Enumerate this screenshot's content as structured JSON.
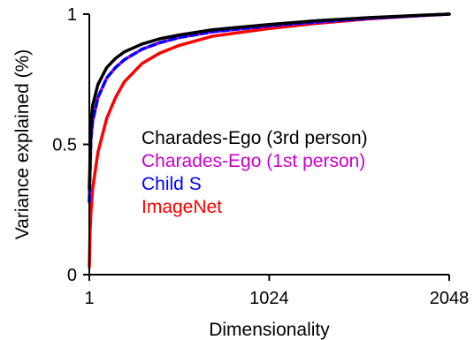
{
  "chart_data": {
    "type": "line",
    "title": "",
    "xlabel": "Dimensionality",
    "ylabel": "Variance explained (%)",
    "xlim": [
      1,
      2048
    ],
    "ylim": [
      0,
      1
    ],
    "x_ticks": [
      1,
      1024,
      2048
    ],
    "x_tick_labels": [
      "1",
      "1024",
      "2048"
    ],
    "y_ticks": [
      0,
      0.5,
      1
    ],
    "y_tick_labels": [
      "0",
      "0.5",
      "1"
    ],
    "grid": false,
    "legend_placement": "center",
    "series": [
      {
        "name": "Charades-Ego (3rd person)",
        "color": "#000000",
        "dashed": false,
        "x": [
          1,
          10,
          20,
          50,
          100,
          150,
          200,
          300,
          400,
          512,
          700,
          1024,
          1300,
          1600,
          1900,
          2048
        ],
        "y": [
          0.33,
          0.58,
          0.65,
          0.73,
          0.795,
          0.83,
          0.855,
          0.885,
          0.905,
          0.92,
          0.94,
          0.96,
          0.975,
          0.987,
          0.996,
          1.0
        ]
      },
      {
        "name": "Charades-Ego (1st person)",
        "color": "#cc00cc",
        "dashed": false,
        "x": [
          1,
          10,
          20,
          50,
          100,
          150,
          200,
          300,
          400,
          512,
          700,
          1024,
          1300,
          1600,
          1900,
          2048
        ],
        "y": [
          0.28,
          0.52,
          0.59,
          0.68,
          0.755,
          0.795,
          0.825,
          0.865,
          0.89,
          0.91,
          0.932,
          0.955,
          0.97,
          0.984,
          0.995,
          1.0
        ]
      },
      {
        "name": "Child S",
        "color": "#0000ff",
        "dashed": true,
        "x": [
          1,
          10,
          20,
          50,
          100,
          150,
          200,
          300,
          400,
          512,
          700,
          1024,
          1300,
          1600,
          1900,
          2048
        ],
        "y": [
          0.28,
          0.52,
          0.59,
          0.68,
          0.755,
          0.795,
          0.825,
          0.865,
          0.89,
          0.91,
          0.932,
          0.955,
          0.97,
          0.984,
          0.995,
          1.0
        ]
      },
      {
        "name": "ImageNet",
        "color": "#ff0000",
        "dashed": false,
        "x": [
          1,
          5,
          10,
          20,
          50,
          100,
          150,
          200,
          300,
          400,
          512,
          700,
          1024,
          1300,
          1600,
          1900,
          2048
        ],
        "y": [
          0.03,
          0.16,
          0.24,
          0.33,
          0.47,
          0.6,
          0.68,
          0.74,
          0.81,
          0.85,
          0.88,
          0.915,
          0.945,
          0.965,
          0.982,
          0.995,
          1.0
        ]
      }
    ]
  }
}
